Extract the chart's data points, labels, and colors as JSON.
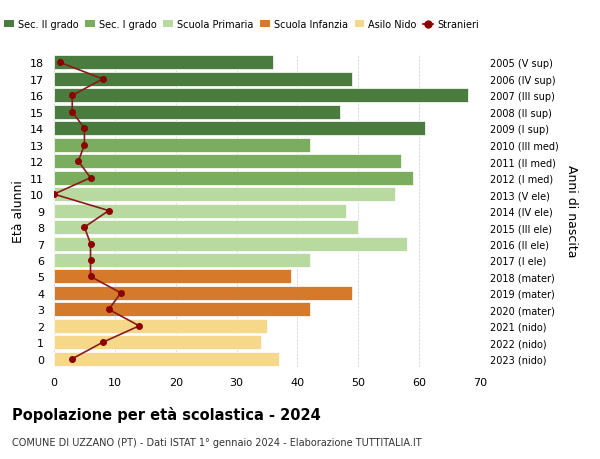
{
  "ages": [
    18,
    17,
    16,
    15,
    14,
    13,
    12,
    11,
    10,
    9,
    8,
    7,
    6,
    5,
    4,
    3,
    2,
    1,
    0
  ],
  "right_labels_by_age": {
    "18": "2005 (V sup)",
    "17": "2006 (IV sup)",
    "16": "2007 (III sup)",
    "15": "2008 (II sup)",
    "14": "2009 (I sup)",
    "13": "2010 (III med)",
    "12": "2011 (II med)",
    "11": "2012 (I med)",
    "10": "2013 (V ele)",
    "9": "2014 (IV ele)",
    "8": "2015 (III ele)",
    "7": "2016 (II ele)",
    "6": "2017 (I ele)",
    "5": "2018 (mater)",
    "4": "2019 (mater)",
    "3": "2020 (mater)",
    "2": "2021 (nido)",
    "1": "2022 (nido)",
    "0": "2023 (nido)"
  },
  "bar_values_by_age": {
    "18": 36,
    "17": 49,
    "16": 68,
    "15": 47,
    "14": 61,
    "13": 42,
    "12": 57,
    "11": 59,
    "10": 56,
    "9": 48,
    "8": 50,
    "7": 58,
    "6": 42,
    "5": 39,
    "4": 49,
    "3": 42,
    "2": 35,
    "1": 34,
    "0": 37
  },
  "bar_colors_by_age": {
    "18": "#4a7c3f",
    "17": "#4a7c3f",
    "16": "#4a7c3f",
    "15": "#4a7c3f",
    "14": "#4a7c3f",
    "13": "#7aad5e",
    "12": "#7aad5e",
    "11": "#7aad5e",
    "10": "#b8d9a0",
    "9": "#b8d9a0",
    "8": "#b8d9a0",
    "7": "#b8d9a0",
    "6": "#b8d9a0",
    "5": "#d47a2a",
    "4": "#d47a2a",
    "3": "#d47a2a",
    "2": "#f5d88a",
    "1": "#f5d88a",
    "0": "#f5d88a"
  },
  "stranieri_by_age": {
    "18": 1,
    "17": 8,
    "16": 3,
    "15": 3,
    "14": 5,
    "13": 5,
    "12": 4,
    "11": 6,
    "10": 0,
    "9": 9,
    "8": 5,
    "7": 6,
    "6": 6,
    "5": 6,
    "4": 11,
    "3": 9,
    "2": 14,
    "1": 8,
    "0": 3
  },
  "legend_labels": [
    "Sec. II grado",
    "Sec. I grado",
    "Scuola Primaria",
    "Scuola Infanzia",
    "Asilo Nido",
    "Stranieri"
  ],
  "legend_colors": [
    "#4a7c3f",
    "#7aad5e",
    "#b8d9a0",
    "#d47a2a",
    "#f5d88a",
    "#8b0000"
  ],
  "title": "Popolazione per età scolastica - 2024",
  "subtitle": "COMUNE DI UZZANO (PT) - Dati ISTAT 1° gennaio 2024 - Elaborazione TUTTITALIA.IT",
  "ylabel": "Età alunni",
  "ylabel2": "Anni di nascita",
  "xlim_max": 70,
  "xlabel_ticks": [
    0,
    10,
    20,
    30,
    40,
    50,
    60,
    70
  ],
  "bg_color": "#ffffff",
  "grid_color": "#cccccc"
}
